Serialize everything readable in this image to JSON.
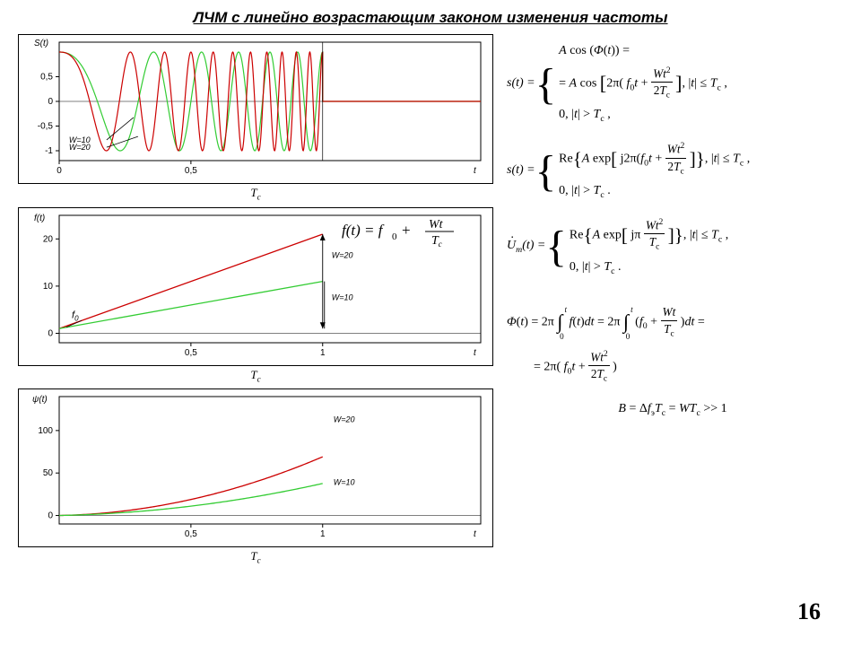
{
  "title": "ЛЧМ с линейно возрастающим законом изменения частоты",
  "slide_number": "16",
  "colors": {
    "series_a": "#cc0000",
    "series_b": "#33cc33",
    "axis": "#000000",
    "background": "#ffffff"
  },
  "plot1": {
    "type": "line",
    "ylabel": "S(t)",
    "xlabel": "t",
    "sub_xlabel": "Tc",
    "ylim": [
      -1.2,
      1.2
    ],
    "xlim": [
      0,
      1.6
    ],
    "cutoff_x": 1.0,
    "yticks": [
      -1,
      -0.5,
      0,
      0.5
    ],
    "ytick_labels": [
      "-1",
      "-0,5",
      "0",
      "0,5"
    ],
    "xticks": [
      0,
      0.5
    ],
    "xtick_labels": [
      "0",
      "0,5"
    ],
    "legend": {
      "a": "W=10",
      "b": "W=20"
    },
    "series": [
      {
        "label": "W=10",
        "color": "#33cc33",
        "freq_start": 1,
        "freq_end": 11
      },
      {
        "label": "W=20",
        "color": "#cc0000",
        "freq_start": 1,
        "freq_end": 21
      }
    ]
  },
  "plot2": {
    "type": "line",
    "ylabel": "f(t)",
    "xlabel": "t",
    "sub_xlabel": "Tc",
    "f0_label": "f0",
    "formula": "f(t) = f0 + Wt / Tc",
    "ylim": [
      -2,
      25
    ],
    "xlim": [
      0,
      1.6
    ],
    "yticks": [
      0,
      10,
      20
    ],
    "ytick_labels": [
      "0",
      "10",
      "20"
    ],
    "xticks": [
      0.5,
      1
    ],
    "xtick_labels": [
      "0,5",
      "1"
    ],
    "series": [
      {
        "label": "W=20",
        "color": "#cc0000",
        "y0": 1,
        "y1": 21
      },
      {
        "label": "W=10",
        "color": "#33cc33",
        "y0": 1,
        "y1": 11
      }
    ]
  },
  "plot3": {
    "type": "line",
    "ylabel": "ψ(t)",
    "xlabel": "t",
    "sub_xlabel": "Tc",
    "ylim": [
      -10,
      140
    ],
    "xlim": [
      0,
      1.6
    ],
    "yticks": [
      0,
      50,
      100
    ],
    "ytick_labels": [
      "0",
      "50",
      "100"
    ],
    "xticks": [
      0.5,
      1
    ],
    "xtick_labels": [
      "0,5",
      "1"
    ],
    "series": [
      {
        "label": "W=20",
        "color": "#cc0000"
      },
      {
        "label": "W=10",
        "color": "#33cc33"
      }
    ]
  },
  "equations": {
    "eq1_lhs": "s(t) =",
    "eq1_case1": "A cos (Φ(t)) =",
    "eq1_case2a": "= A cos",
    "eq1_case2b": ", |t| ≤ Tc ,",
    "eq1_case3": "0, |t| > Tc ,",
    "eq2_lhs": "s(t) =",
    "eq2_case1a": "Re",
    "eq2_case1b": "A exp",
    "eq2_case1c": ", |t| ≤ Tc ,",
    "eq2_case2": "0, |t| > Tc .",
    "eq3_lhs": "U̇m(t) =",
    "eq3_case1a": "Re",
    "eq3_case1b": "A exp",
    "eq3_case1c": ", |t| ≤ Tc ,",
    "eq3_case2": "0, |t| > Tc .",
    "eq4_line1a": "Φ(t) = 2π",
    "eq4_line1b": "f(t)dt = 2π",
    "eq4_line1c": ") dt =",
    "eq4_line2": "= 2π( f0 t +",
    "eq4_line2b": ")",
    "eq5": "B = Δfэ Tc = WTc >> 1"
  }
}
